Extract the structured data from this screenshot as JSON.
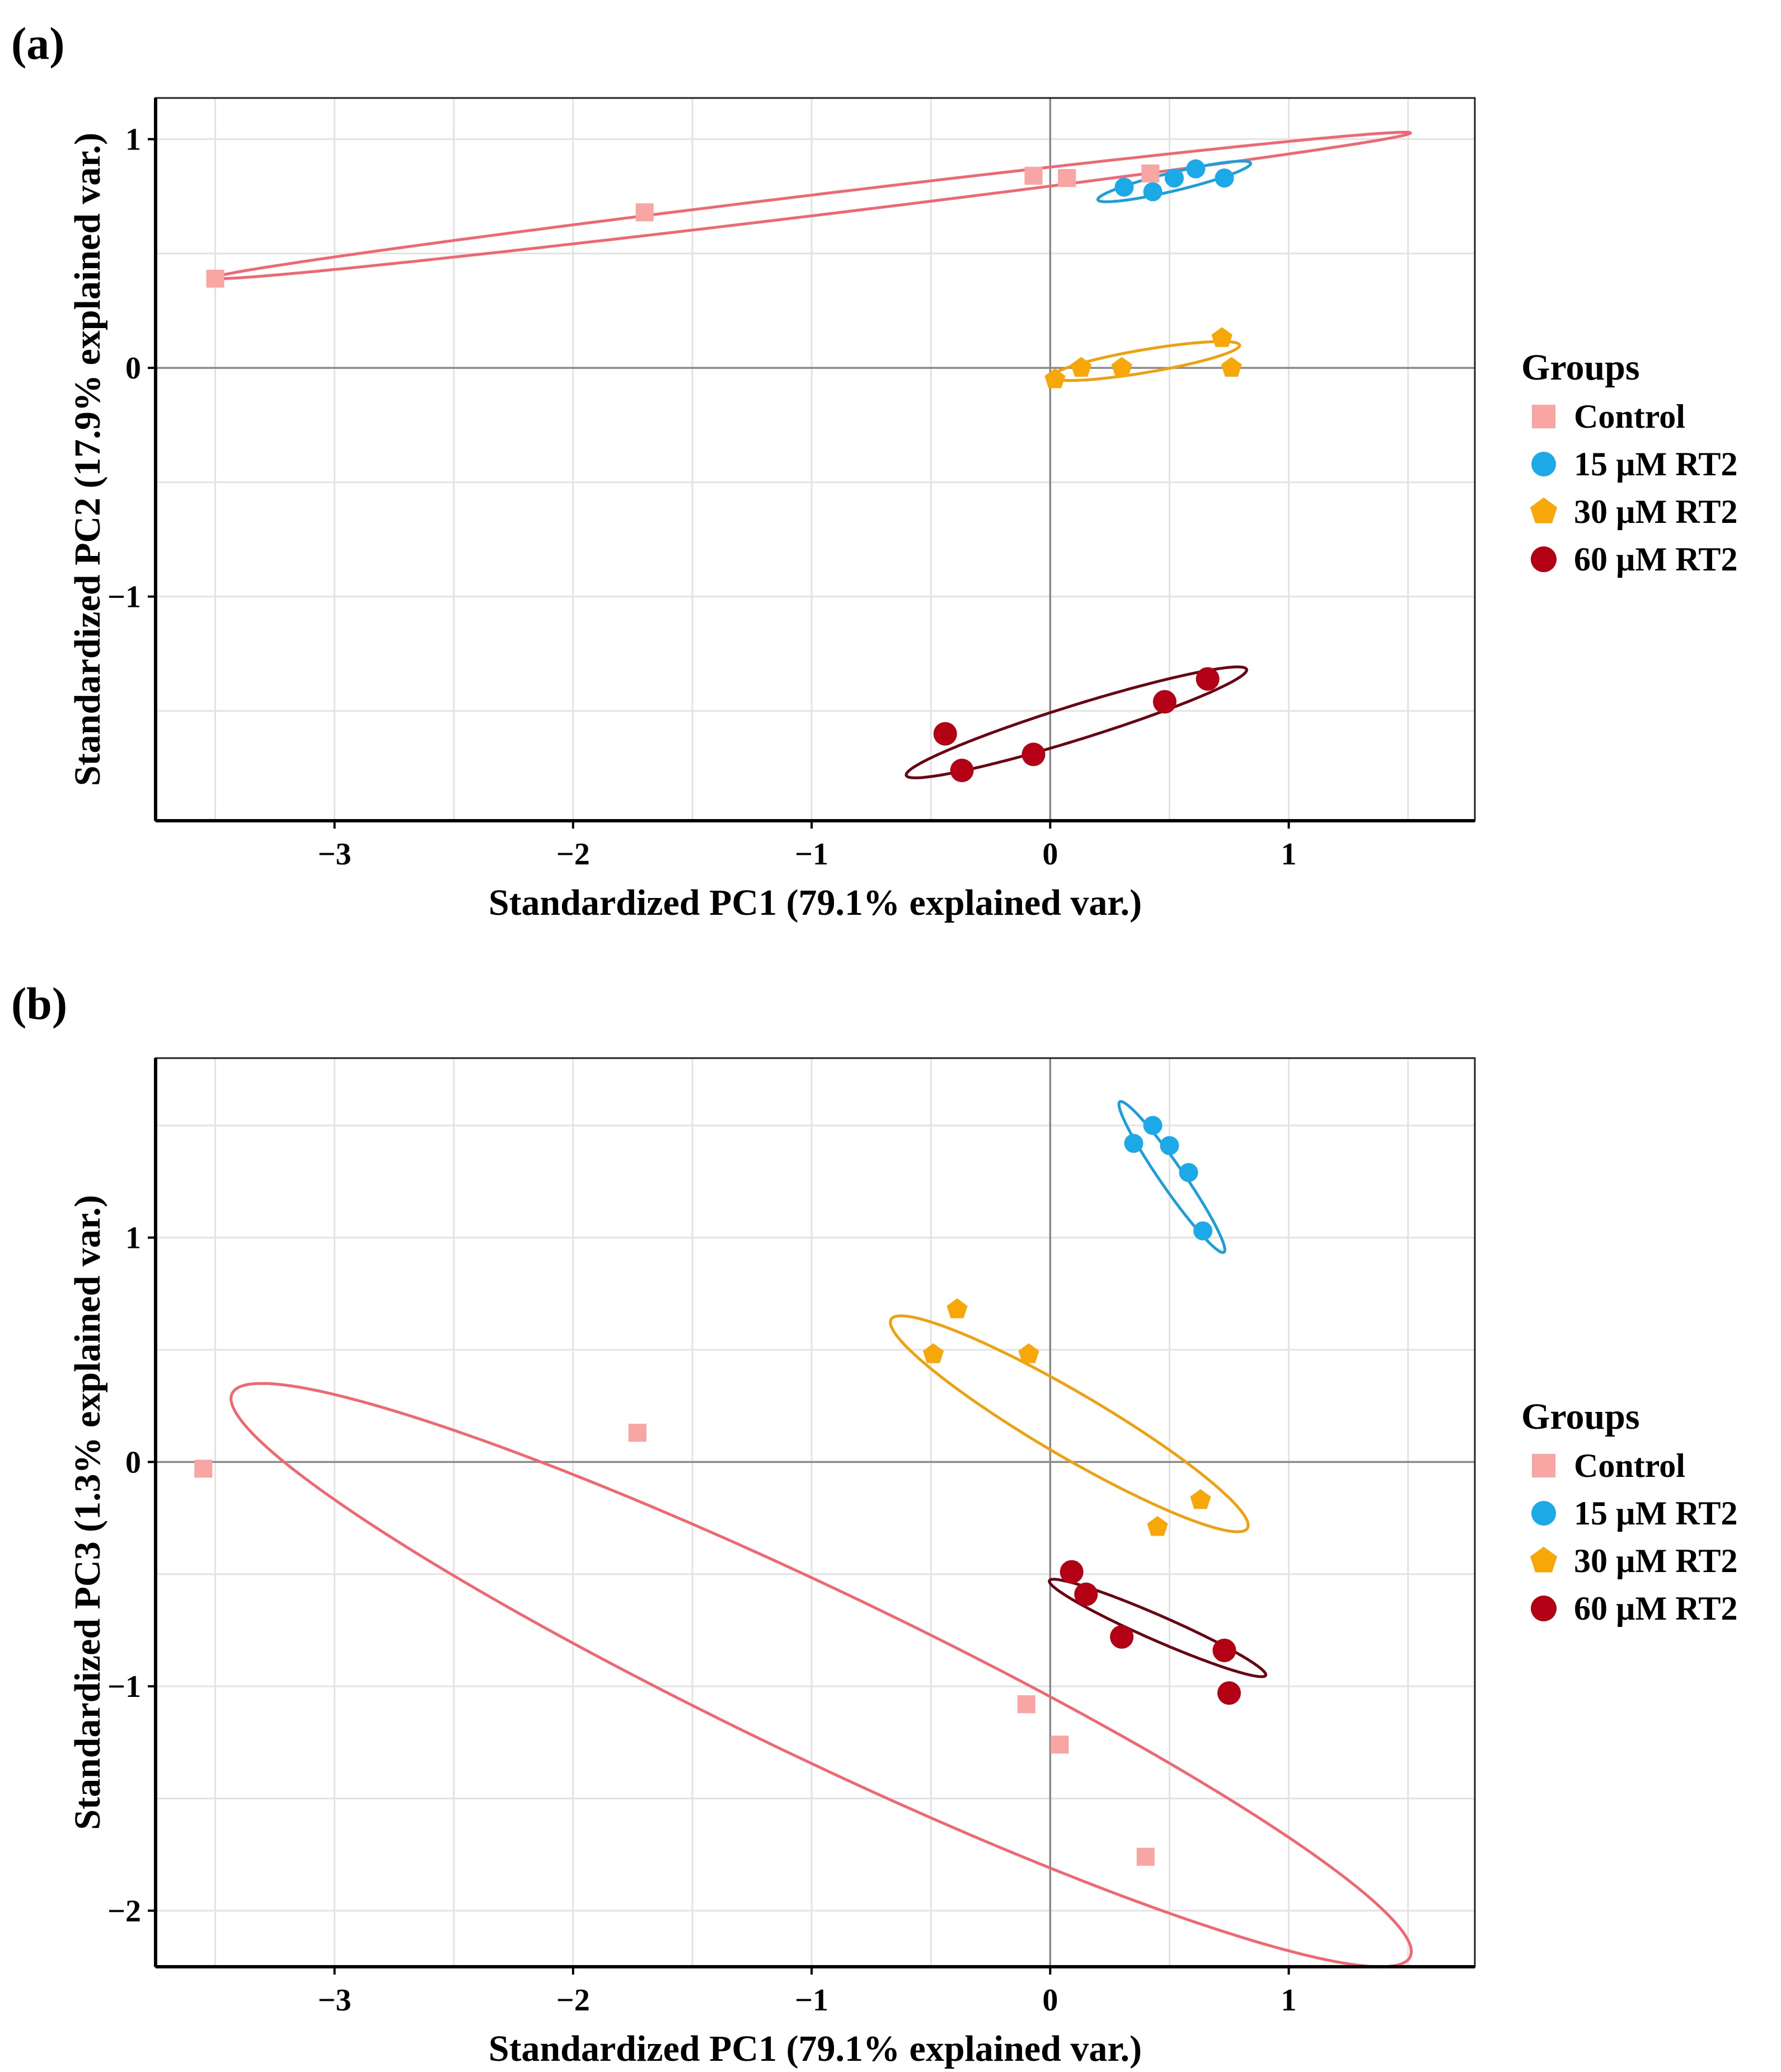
{
  "legend_title": "Groups",
  "groups": [
    {
      "key": "control",
      "label": "Control",
      "color": "#F8A5A3",
      "shape": "square"
    },
    {
      "key": "g15",
      "label": "15 µM RT2",
      "color": "#1BA9E8",
      "shape": "circle"
    },
    {
      "key": "g30",
      "label": "30 µM RT2",
      "color": "#F8A708",
      "shape": "pentagon"
    },
    {
      "key": "g60",
      "label": "60 µM RT2",
      "color": "#B30014",
      "shape": "circle"
    }
  ],
  "chart_data": [
    {
      "type": "scatter",
      "panel_label": "(a)",
      "xlabel": "Standardized PC1 (79.1% explained var.)",
      "ylabel": "Standardized PC2 (17.9% explained var.)",
      "xlim": [
        -3.75,
        1.78
      ],
      "ylim": [
        -1.98,
        1.18
      ],
      "xticks": [
        -3,
        -2,
        -1,
        0,
        1
      ],
      "xtick_labels": [
        "−3",
        "−2",
        "−1",
        "0",
        "1"
      ],
      "yticks": [
        -1,
        0,
        1
      ],
      "ytick_labels": [
        "−1",
        "0",
        "1"
      ],
      "grid": true,
      "legend": "right",
      "series": [
        {
          "name": "Control",
          "x": [
            -3.5,
            -1.7,
            -0.07,
            0.07,
            0.42
          ],
          "y": [
            0.39,
            0.68,
            0.84,
            0.83,
            0.85
          ]
        },
        {
          "name": "15 µM RT2",
          "x": [
            0.31,
            0.43,
            0.52,
            0.61,
            0.73
          ],
          "y": [
            0.79,
            0.77,
            0.83,
            0.87,
            0.83
          ]
        },
        {
          "name": "30 µM RT2",
          "x": [
            0.02,
            0.13,
            0.3,
            0.72,
            0.76
          ],
          "y": [
            -0.05,
            0.0,
            0.0,
            0.13,
            0.0
          ]
        },
        {
          "name": "60 µM RT2",
          "x": [
            -0.44,
            -0.37,
            -0.07,
            0.48,
            0.66
          ],
          "y": [
            -1.6,
            -1.76,
            -1.69,
            -1.46,
            -1.36
          ]
        }
      ],
      "ellipses": [
        {
          "group": "Control",
          "center": [
            -1.0,
            0.71
          ],
          "semi_axes": [
            2.53,
            0.045
          ],
          "angle_deg": 7.2
        },
        {
          "group": "15 µM RT2",
          "center": [
            0.52,
            0.815
          ],
          "semi_axes": [
            0.33,
            0.04
          ],
          "angle_deg": 14
        },
        {
          "group": "30 µM RT2",
          "center": [
            0.4,
            0.03
          ],
          "semi_axes": [
            0.4,
            0.05
          ],
          "angle_deg": 10
        },
        {
          "group": "60 µM RT2",
          "center": [
            0.11,
            -1.55
          ],
          "semi_axes": [
            0.75,
            0.075
          ],
          "angle_deg": 18
        }
      ]
    },
    {
      "type": "scatter",
      "panel_label": "(b)",
      "xlabel": "Standardized PC1 (79.1% explained var.)",
      "ylabel": "Standardized PC3 (1.3% explained var.)",
      "xlim": [
        -3.75,
        1.78
      ],
      "ylim": [
        -2.25,
        1.8
      ],
      "xticks": [
        -3,
        -2,
        -1,
        0,
        1
      ],
      "xtick_labels": [
        "−3",
        "−2",
        "−1",
        "0",
        "1"
      ],
      "yticks": [
        -2,
        -1,
        0,
        1
      ],
      "ytick_labels": [
        "−2",
        "−1",
        "0",
        "1"
      ],
      "grid": true,
      "legend": "right",
      "series": [
        {
          "name": "Control",
          "x": [
            -3.55,
            -1.73,
            -0.1,
            0.04,
            0.4
          ],
          "y": [
            -0.03,
            0.13,
            -1.08,
            -1.26,
            -1.76
          ]
        },
        {
          "name": "15 µM RT2",
          "x": [
            0.35,
            0.43,
            0.5,
            0.58,
            0.64
          ],
          "y": [
            1.42,
            1.5,
            1.41,
            1.29,
            1.03
          ]
        },
        {
          "name": "30 µM RT2",
          "x": [
            -0.49,
            -0.39,
            -0.09,
            0.45,
            0.63
          ],
          "y": [
            0.48,
            0.68,
            0.48,
            -0.29,
            -0.17
          ]
        },
        {
          "name": "60 µM RT2",
          "x": [
            0.09,
            0.15,
            0.3,
            0.73,
            0.75
          ],
          "y": [
            -0.49,
            -0.59,
            -0.78,
            -0.84,
            -1.03
          ]
        }
      ],
      "ellipses": [
        {
          "group": "Control",
          "center": [
            -0.96,
            -0.95
          ],
          "semi_axes": [
            2.77,
            0.37
          ],
          "angle_deg": -27
        },
        {
          "group": "15 µM RT2",
          "center": [
            0.51,
            1.27
          ],
          "semi_axes": [
            0.4,
            0.05
          ],
          "angle_deg": -57
        },
        {
          "group": "30 µM RT2",
          "center": [
            0.08,
            0.17
          ],
          "semi_axes": [
            0.88,
            0.14
          ],
          "angle_deg": -32
        },
        {
          "group": "60 µM RT2",
          "center": [
            0.45,
            -0.74
          ],
          "semi_axes": [
            0.5,
            0.055
          ],
          "angle_deg": -25
        }
      ]
    }
  ]
}
